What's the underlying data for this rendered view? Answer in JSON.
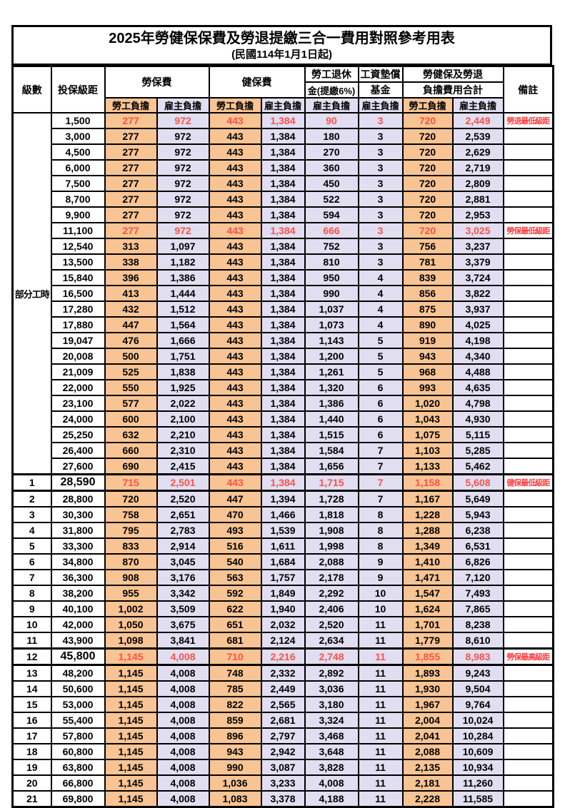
{
  "title": "2025年勞健保保費及勞退提繳三合一費用對照參考用表",
  "subtitle": "(民國114年1月1日起)",
  "header": {
    "level": "級數",
    "bracket": "投保級距",
    "labor_ins": "勞保費",
    "health_ins": "健保費",
    "pension_line1": "勞工退休",
    "pension_line2": "金(提繳6%)",
    "wage_fund_line1": "工資墊償",
    "wage_fund_line2": "基金",
    "total_line1": "勞健保及勞退",
    "total_line2": "負擔費用合計",
    "remark": "備註",
    "employee": "勞工負擔",
    "employer": "雇主負擔"
  },
  "part_time_label": "部分工時",
  "part_time_span": 23,
  "colors": {
    "employee_fill": "#F8C493",
    "employer_fill": "#E0DEF0",
    "highlight_value_text": "#FF5148",
    "remark_text": "#FF4040",
    "grid": "#000000"
  },
  "rows": [
    {
      "level": "",
      "bracket": "1,500",
      "values": [
        "277",
        "972",
        "443",
        "1,384",
        "90",
        "3",
        "720",
        "2,449"
      ],
      "remark": "勞退最低級距",
      "red": true,
      "thick": false,
      "big": false
    },
    {
      "level": "",
      "bracket": "3,000",
      "values": [
        "277",
        "972",
        "443",
        "1,384",
        "180",
        "3",
        "720",
        "2,539"
      ],
      "remark": "",
      "red": false,
      "thick": false,
      "big": false
    },
    {
      "level": "",
      "bracket": "4,500",
      "values": [
        "277",
        "972",
        "443",
        "1,384",
        "270",
        "3",
        "720",
        "2,629"
      ],
      "remark": "",
      "red": false,
      "thick": false,
      "big": false
    },
    {
      "level": "",
      "bracket": "6,000",
      "values": [
        "277",
        "972",
        "443",
        "1,384",
        "360",
        "3",
        "720",
        "2,719"
      ],
      "remark": "",
      "red": false,
      "thick": false,
      "big": false
    },
    {
      "level": "",
      "bracket": "7,500",
      "values": [
        "277",
        "972",
        "443",
        "1,384",
        "450",
        "3",
        "720",
        "2,809"
      ],
      "remark": "",
      "red": false,
      "thick": false,
      "big": false
    },
    {
      "level": "",
      "bracket": "8,700",
      "values": [
        "277",
        "972",
        "443",
        "1,384",
        "522",
        "3",
        "720",
        "2,881"
      ],
      "remark": "",
      "red": false,
      "thick": false,
      "big": false
    },
    {
      "level": "",
      "bracket": "9,900",
      "values": [
        "277",
        "972",
        "443",
        "1,384",
        "594",
        "3",
        "720",
        "2,953"
      ],
      "remark": "",
      "red": false,
      "thick": false,
      "big": false
    },
    {
      "level": "",
      "bracket": "11,100",
      "values": [
        "277",
        "972",
        "443",
        "1,384",
        "666",
        "3",
        "720",
        "3,025"
      ],
      "remark": "勞保最低級距",
      "red": true,
      "thick": false,
      "big": false
    },
    {
      "level": "",
      "bracket": "12,540",
      "values": [
        "313",
        "1,097",
        "443",
        "1,384",
        "752",
        "3",
        "756",
        "3,237"
      ],
      "remark": "",
      "red": false,
      "thick": false,
      "big": false
    },
    {
      "level": "",
      "bracket": "13,500",
      "values": [
        "338",
        "1,182",
        "443",
        "1,384",
        "810",
        "3",
        "781",
        "3,379"
      ],
      "remark": "",
      "red": false,
      "thick": false,
      "big": false
    },
    {
      "level": "",
      "bracket": "15,840",
      "values": [
        "396",
        "1,386",
        "443",
        "1,384",
        "950",
        "4",
        "839",
        "3,724"
      ],
      "remark": "",
      "red": false,
      "thick": false,
      "big": false
    },
    {
      "level": "",
      "bracket": "16,500",
      "values": [
        "413",
        "1,444",
        "443",
        "1,384",
        "990",
        "4",
        "856",
        "3,822"
      ],
      "remark": "",
      "red": false,
      "thick": false,
      "big": false
    },
    {
      "level": "",
      "bracket": "17,280",
      "values": [
        "432",
        "1,512",
        "443",
        "1,384",
        "1,037",
        "4",
        "875",
        "3,937"
      ],
      "remark": "",
      "red": false,
      "thick": false,
      "big": false
    },
    {
      "level": "",
      "bracket": "17,880",
      "values": [
        "447",
        "1,564",
        "443",
        "1,384",
        "1,073",
        "4",
        "890",
        "4,025"
      ],
      "remark": "",
      "red": false,
      "thick": false,
      "big": false
    },
    {
      "level": "",
      "bracket": "19,047",
      "values": [
        "476",
        "1,666",
        "443",
        "1,384",
        "1,143",
        "5",
        "919",
        "4,198"
      ],
      "remark": "",
      "red": false,
      "thick": false,
      "big": false
    },
    {
      "level": "",
      "bracket": "20,008",
      "values": [
        "500",
        "1,751",
        "443",
        "1,384",
        "1,200",
        "5",
        "943",
        "4,340"
      ],
      "remark": "",
      "red": false,
      "thick": false,
      "big": false
    },
    {
      "level": "",
      "bracket": "21,009",
      "values": [
        "525",
        "1,838",
        "443",
        "1,384",
        "1,261",
        "5",
        "968",
        "4,488"
      ],
      "remark": "",
      "red": false,
      "thick": false,
      "big": false
    },
    {
      "level": "",
      "bracket": "22,000",
      "values": [
        "550",
        "1,925",
        "443",
        "1,384",
        "1,320",
        "6",
        "993",
        "4,635"
      ],
      "remark": "",
      "red": false,
      "thick": false,
      "big": false
    },
    {
      "level": "",
      "bracket": "23,100",
      "values": [
        "577",
        "2,022",
        "443",
        "1,384",
        "1,386",
        "6",
        "1,020",
        "4,798"
      ],
      "remark": "",
      "red": false,
      "thick": false,
      "big": false
    },
    {
      "level": "",
      "bracket": "24,000",
      "values": [
        "600",
        "2,100",
        "443",
        "1,384",
        "1,440",
        "6",
        "1,043",
        "4,930"
      ],
      "remark": "",
      "red": false,
      "thick": false,
      "big": false
    },
    {
      "level": "",
      "bracket": "25,250",
      "values": [
        "632",
        "2,210",
        "443",
        "1,384",
        "1,515",
        "6",
        "1,075",
        "5,115"
      ],
      "remark": "",
      "red": false,
      "thick": false,
      "big": false
    },
    {
      "level": "",
      "bracket": "26,400",
      "values": [
        "660",
        "2,310",
        "443",
        "1,384",
        "1,584",
        "7",
        "1,103",
        "5,285"
      ],
      "remark": "",
      "red": false,
      "thick": false,
      "big": false
    },
    {
      "level": "",
      "bracket": "27,600",
      "values": [
        "690",
        "2,415",
        "443",
        "1,384",
        "1,656",
        "7",
        "1,133",
        "5,462"
      ],
      "remark": "",
      "red": false,
      "thick": false,
      "big": false
    },
    {
      "level": "1",
      "bracket": "28,590",
      "values": [
        "715",
        "2,501",
        "443",
        "1,384",
        "1,715",
        "7",
        "1,158",
        "5,608"
      ],
      "remark": "健保最低級距",
      "red": true,
      "thick": true,
      "big": true
    },
    {
      "level": "2",
      "bracket": "28,800",
      "values": [
        "720",
        "2,520",
        "447",
        "1,394",
        "1,728",
        "7",
        "1,167",
        "5,649"
      ],
      "remark": "",
      "red": false,
      "thick": false,
      "big": false
    },
    {
      "level": "3",
      "bracket": "30,300",
      "values": [
        "758",
        "2,651",
        "470",
        "1,466",
        "1,818",
        "8",
        "1,228",
        "5,943"
      ],
      "remark": "",
      "red": false,
      "thick": false,
      "big": false
    },
    {
      "level": "4",
      "bracket": "31,800",
      "values": [
        "795",
        "2,783",
        "493",
        "1,539",
        "1,908",
        "8",
        "1,288",
        "6,238"
      ],
      "remark": "",
      "red": false,
      "thick": false,
      "big": false
    },
    {
      "level": "5",
      "bracket": "33,300",
      "values": [
        "833",
        "2,914",
        "516",
        "1,611",
        "1,998",
        "8",
        "1,349",
        "6,531"
      ],
      "remark": "",
      "red": false,
      "thick": false,
      "big": false
    },
    {
      "level": "6",
      "bracket": "34,800",
      "values": [
        "870",
        "3,045",
        "540",
        "1,684",
        "2,088",
        "9",
        "1,410",
        "6,826"
      ],
      "remark": "",
      "red": false,
      "thick": false,
      "big": false
    },
    {
      "level": "7",
      "bracket": "36,300",
      "values": [
        "908",
        "3,176",
        "563",
        "1,757",
        "2,178",
        "9",
        "1,471",
        "7,120"
      ],
      "remark": "",
      "red": false,
      "thick": false,
      "big": false
    },
    {
      "level": "8",
      "bracket": "38,200",
      "values": [
        "955",
        "3,342",
        "592",
        "1,849",
        "2,292",
        "10",
        "1,547",
        "7,493"
      ],
      "remark": "",
      "red": false,
      "thick": false,
      "big": false
    },
    {
      "level": "9",
      "bracket": "40,100",
      "values": [
        "1,002",
        "3,509",
        "622",
        "1,940",
        "2,406",
        "10",
        "1,624",
        "7,865"
      ],
      "remark": "",
      "red": false,
      "thick": false,
      "big": false
    },
    {
      "level": "10",
      "bracket": "42,000",
      "values": [
        "1,050",
        "3,675",
        "651",
        "2,032",
        "2,520",
        "11",
        "1,701",
        "8,238"
      ],
      "remark": "",
      "red": false,
      "thick": false,
      "big": false
    },
    {
      "level": "11",
      "bracket": "43,900",
      "values": [
        "1,098",
        "3,841",
        "681",
        "2,124",
        "2,634",
        "11",
        "1,779",
        "8,610"
      ],
      "remark": "",
      "red": false,
      "thick": false,
      "big": false
    },
    {
      "level": "12",
      "bracket": "45,800",
      "values": [
        "1,145",
        "4,008",
        "710",
        "2,216",
        "2,748",
        "11",
        "1,855",
        "8,983"
      ],
      "remark": "勞保最高級距",
      "red": true,
      "thick": true,
      "big": true
    },
    {
      "level": "13",
      "bracket": "48,200",
      "values": [
        "1,145",
        "4,008",
        "748",
        "2,332",
        "2,892",
        "11",
        "1,893",
        "9,243"
      ],
      "remark": "",
      "red": false,
      "thick": false,
      "big": false
    },
    {
      "level": "14",
      "bracket": "50,600",
      "values": [
        "1,145",
        "4,008",
        "785",
        "2,449",
        "3,036",
        "11",
        "1,930",
        "9,504"
      ],
      "remark": "",
      "red": false,
      "thick": false,
      "big": false
    },
    {
      "level": "15",
      "bracket": "53,000",
      "values": [
        "1,145",
        "4,008",
        "822",
        "2,565",
        "3,180",
        "11",
        "1,967",
        "9,764"
      ],
      "remark": "",
      "red": false,
      "thick": false,
      "big": false
    },
    {
      "level": "16",
      "bracket": "55,400",
      "values": [
        "1,145",
        "4,008",
        "859",
        "2,681",
        "3,324",
        "11",
        "2,004",
        "10,024"
      ],
      "remark": "",
      "red": false,
      "thick": false,
      "big": false
    },
    {
      "level": "17",
      "bracket": "57,800",
      "values": [
        "1,145",
        "4,008",
        "896",
        "2,797",
        "3,468",
        "11",
        "2,041",
        "10,284"
      ],
      "remark": "",
      "red": false,
      "thick": false,
      "big": false
    },
    {
      "level": "18",
      "bracket": "60,800",
      "values": [
        "1,145",
        "4,008",
        "943",
        "2,942",
        "3,648",
        "11",
        "2,088",
        "10,609"
      ],
      "remark": "",
      "red": false,
      "thick": false,
      "big": false
    },
    {
      "level": "19",
      "bracket": "63,800",
      "values": [
        "1,145",
        "4,008",
        "990",
        "3,087",
        "3,828",
        "11",
        "2,135",
        "10,934"
      ],
      "remark": "",
      "red": false,
      "thick": false,
      "big": false
    },
    {
      "level": "20",
      "bracket": "66,800",
      "values": [
        "1,145",
        "4,008",
        "1,036",
        "3,233",
        "4,008",
        "11",
        "2,181",
        "11,260"
      ],
      "remark": "",
      "red": false,
      "thick": false,
      "big": false
    },
    {
      "level": "21",
      "bracket": "69,800",
      "values": [
        "1,145",
        "4,008",
        "1,083",
        "3,378",
        "4,188",
        "11",
        "2,228",
        "11,585"
      ],
      "remark": "",
      "red": false,
      "thick": false,
      "big": false
    }
  ]
}
